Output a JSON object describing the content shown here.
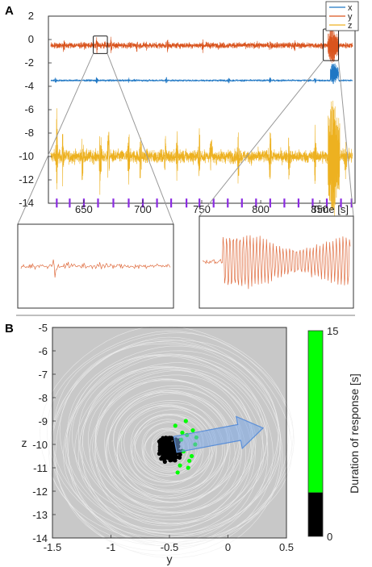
{
  "chart_data": [
    {
      "panel": "A",
      "type": "line",
      "xlabel": "Time [s]",
      "xlim": [
        620,
        880
      ],
      "ylim": [
        -14,
        2
      ],
      "xticks": [
        650,
        700,
        750,
        800,
        850
      ],
      "yticks": [
        -14,
        -12,
        -10,
        -8,
        -6,
        -4,
        -2,
        0,
        2
      ],
      "legend": {
        "position": "top-right",
        "entries": [
          "x",
          "y",
          "z"
        ]
      },
      "series": [
        {
          "name": "x",
          "color": "#1f77c4",
          "baseline": -3.5,
          "noise": 0.08,
          "spikes": [
            [
              626,
              0.35
            ],
            [
              661,
              0.35
            ],
            [
              688,
              0.3
            ],
            [
              720,
              0.4
            ],
            [
              773,
              0.3
            ],
            [
              808,
              0.35
            ],
            [
              846,
              0.35
            ]
          ],
          "burst": {
            "start": 859,
            "end": 866,
            "amplitude": 0.9,
            "offset": 0.6
          }
        },
        {
          "name": "y",
          "color": "#d9541e",
          "baseline": -0.5,
          "noise": 0.25,
          "spikes": [
            [
              633,
              0.6
            ],
            [
              661,
              0.9
            ],
            [
              673,
              0.6
            ],
            [
              695,
              0.5
            ],
            [
              703,
              0.5
            ],
            [
              721,
              0.6
            ],
            [
              751,
              0.5
            ],
            [
              808,
              0.6
            ],
            [
              829,
              0.5
            ]
          ],
          "burst": {
            "start": 857,
            "end": 866,
            "amplitude": 1.4,
            "offset": 0
          }
        },
        {
          "name": "z",
          "color": "#edb120",
          "baseline": -10,
          "noise": 0.55,
          "spikes": [
            [
              627,
              4.2
            ],
            [
              632,
              2.5
            ],
            [
              649,
              3.8
            ],
            [
              664,
              4.8
            ],
            [
              671,
              3.2
            ],
            [
              688,
              3.5
            ],
            [
              698,
              2.6
            ],
            [
              719,
              2.6
            ],
            [
              729,
              2.6
            ],
            [
              748,
              2.4
            ],
            [
              758,
              2.8
            ],
            [
              781,
              2.8
            ],
            [
              808,
              3.0
            ],
            [
              824,
              2.4
            ],
            [
              846,
              2.4
            ],
            [
              872,
              2.2
            ]
          ],
          "burst": {
            "start": 857,
            "end": 867,
            "amplitude": 5.0,
            "offset": 0
          }
        }
      ],
      "stimulus_markers": {
        "color": "#8b2be2",
        "times": [
          627,
          638,
          650,
          662,
          675,
          688,
          700,
          712,
          724,
          737,
          748,
          760,
          772,
          784,
          796,
          808,
          820,
          832,
          844,
          856,
          868,
          877
        ]
      },
      "zoom_windows": [
        {
          "x": [
            658,
            670
          ],
          "y": [
            -1.2,
            0.3
          ]
        },
        {
          "x": [
            853,
            866
          ],
          "y": [
            -1.8,
            0.9
          ]
        }
      ]
    },
    {
      "panel": "B",
      "type": "scatter",
      "xlabel": "y",
      "ylabel": "z",
      "xlim": [
        -1.5,
        0.5
      ],
      "ylim": [
        -14,
        -5
      ],
      "xticks": [
        -1.5,
        -1,
        -0.5,
        0,
        0.5
      ],
      "yticks": [
        -14,
        -13,
        -12,
        -11,
        -10,
        -9,
        -8,
        -7,
        -6,
        -5
      ],
      "background": "#c8c8c8",
      "trajectory_color": "#eeeeee",
      "cluster": {
        "center": [
          -0.5,
          -10.2
        ],
        "spread": [
          0.08,
          0.45
        ]
      },
      "green_points": [
        [
          -0.4,
          -9.8
        ],
        [
          -0.35,
          -9.6
        ],
        [
          -0.3,
          -9.4
        ],
        [
          -0.38,
          -10.3
        ],
        [
          -0.33,
          -10.7
        ],
        [
          -0.45,
          -9.2
        ],
        [
          -0.28,
          -10.0
        ],
        [
          -0.41,
          -10.9
        ],
        [
          -0.36,
          -9.0
        ],
        [
          -0.31,
          -10.5
        ],
        [
          -0.43,
          -11.2
        ],
        [
          -0.27,
          -9.7
        ],
        [
          -0.39,
          -9.5
        ],
        [
          -0.34,
          -11.0
        ]
      ],
      "arrow": {
        "from": [
          -0.45,
          -10.0
        ],
        "to": [
          0.3,
          -9.3
        ],
        "color": "#7aa7e8"
      },
      "colorbar": {
        "label": "Duration of response [s]",
        "range": [
          0,
          15
        ],
        "ticks": [
          0,
          15
        ],
        "split": 3.2,
        "colors": [
          "#000000",
          "#00ff00"
        ]
      }
    }
  ]
}
